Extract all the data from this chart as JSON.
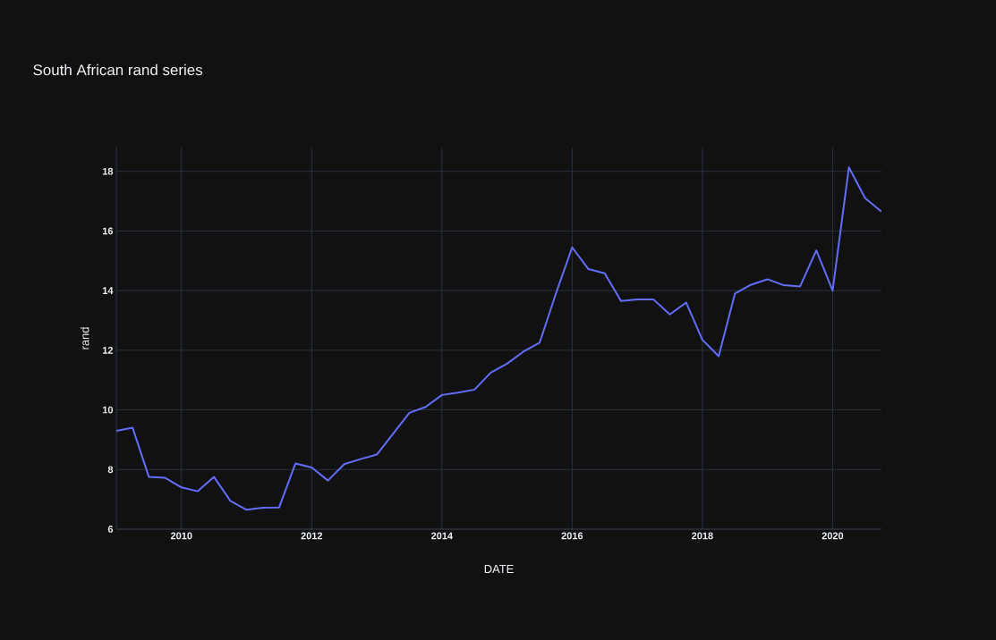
{
  "chart_data": {
    "type": "line",
    "title": "South African rand series",
    "xlabel": "DATE",
    "ylabel": "rand",
    "x": [
      "2009-01",
      "2009-04",
      "2009-07",
      "2009-10",
      "2010-01",
      "2010-04",
      "2010-07",
      "2010-10",
      "2011-01",
      "2011-04",
      "2011-07",
      "2011-10",
      "2012-01",
      "2012-04",
      "2012-07",
      "2012-10",
      "2013-01",
      "2013-04",
      "2013-07",
      "2013-10",
      "2014-01",
      "2014-04",
      "2014-07",
      "2014-10",
      "2015-01",
      "2015-04",
      "2015-07",
      "2015-10",
      "2016-01",
      "2016-04",
      "2016-07",
      "2016-10",
      "2017-01",
      "2017-04",
      "2017-07",
      "2017-10",
      "2018-01",
      "2018-04",
      "2018-07",
      "2018-10",
      "2019-01",
      "2019-04",
      "2019-07",
      "2019-10",
      "2020-01",
      "2020-04",
      "2020-07",
      "2020-10"
    ],
    "series": [
      {
        "color": "#636efa",
        "values": [
          9.3,
          9.4,
          7.75,
          7.72,
          7.4,
          7.27,
          7.75,
          6.95,
          6.65,
          6.72,
          6.73,
          8.2,
          8.07,
          7.63,
          8.18,
          8.35,
          8.5,
          9.2,
          9.9,
          10.1,
          10.5,
          10.58,
          10.68,
          11.25,
          11.55,
          11.95,
          12.25,
          13.9,
          15.45,
          14.72,
          14.58,
          13.65,
          13.7,
          13.7,
          13.2,
          13.6,
          12.35,
          11.8,
          13.9,
          14.2,
          14.38,
          14.18,
          14.14,
          15.35,
          14.0,
          18.13,
          17.1,
          16.65
        ]
      }
    ],
    "xlim": [
      "2009-01",
      "2020-10"
    ],
    "xticks": [
      "2010",
      "2012",
      "2014",
      "2016",
      "2018",
      "2020"
    ],
    "ylim": [
      6,
      18.8
    ],
    "yticks": [
      6,
      8,
      10,
      12,
      14,
      16,
      18
    ],
    "grid": true,
    "marker": "none",
    "line_style": "solid"
  }
}
